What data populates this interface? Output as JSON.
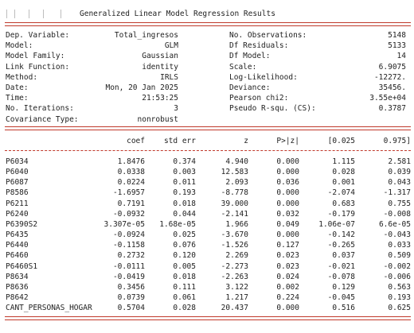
{
  "title": "Generalized Linear Model Regression Results",
  "summary_left": [
    {
      "label": "Dep. Variable:",
      "value": "Total_ingresos"
    },
    {
      "label": "Model:",
      "value": "GLM"
    },
    {
      "label": "Model Family:",
      "value": "Gaussian"
    },
    {
      "label": "Link Function:",
      "value": "identity"
    },
    {
      "label": "Method:",
      "value": "IRLS"
    },
    {
      "label": "Date:",
      "value": "Mon, 20 Jan 2025"
    },
    {
      "label": "Time:",
      "value": "21:53:25"
    },
    {
      "label": "No. Iterations:",
      "value": "3"
    },
    {
      "label": "Covariance Type:",
      "value": "nonrobust"
    }
  ],
  "summary_right": [
    {
      "label": "No. Observations:",
      "value": "5148"
    },
    {
      "label": "Df Residuals:",
      "value": "5133"
    },
    {
      "label": "Df Model:",
      "value": "14"
    },
    {
      "label": "Scale:",
      "value": "6.9075"
    },
    {
      "label": "Log-Likelihood:",
      "value": "-12272."
    },
    {
      "label": "Deviance:",
      "value": "35456."
    },
    {
      "label": "Pearson chi2:",
      "value": "3.55e+04"
    },
    {
      "label": "Pseudo R-squ. (CS):",
      "value": "0.3787"
    }
  ],
  "coef_headers": [
    "coef",
    "std err",
    "z",
    "P>|z|",
    "[0.025",
    "0.975]"
  ],
  "coef_rows": [
    {
      "name": "P6034",
      "coef": "1.8476",
      "se": "0.374",
      "z": "4.940",
      "p": "0.000",
      "lo": "1.115",
      "hi": "2.581"
    },
    {
      "name": "P6040",
      "coef": "0.0338",
      "se": "0.003",
      "z": "12.583",
      "p": "0.000",
      "lo": "0.028",
      "hi": "0.039"
    },
    {
      "name": "P6087",
      "coef": "0.0224",
      "se": "0.011",
      "z": "2.093",
      "p": "0.036",
      "lo": "0.001",
      "hi": "0.043"
    },
    {
      "name": "P8586",
      "coef": "-1.6957",
      "se": "0.193",
      "z": "-8.778",
      "p": "0.000",
      "lo": "-2.074",
      "hi": "-1.317"
    },
    {
      "name": "P6211",
      "coef": "0.7191",
      "se": "0.018",
      "z": "39.000",
      "p": "0.000",
      "lo": "0.683",
      "hi": "0.755"
    },
    {
      "name": "P6240",
      "coef": "-0.0932",
      "se": "0.044",
      "z": "-2.141",
      "p": "0.032",
      "lo": "-0.179",
      "hi": "-0.008"
    },
    {
      "name": "P6390S2",
      "coef": "3.307e-05",
      "se": "1.68e-05",
      "z": "1.966",
      "p": "0.049",
      "lo": "1.06e-07",
      "hi": "6.6e-05"
    },
    {
      "name": "P6435",
      "coef": "-0.0924",
      "se": "0.025",
      "z": "-3.670",
      "p": "0.000",
      "lo": "-0.142",
      "hi": "-0.043"
    },
    {
      "name": "P6440",
      "coef": "-0.1158",
      "se": "0.076",
      "z": "-1.526",
      "p": "0.127",
      "lo": "-0.265",
      "hi": "0.033"
    },
    {
      "name": "P6460",
      "coef": "0.2732",
      "se": "0.120",
      "z": "2.269",
      "p": "0.023",
      "lo": "0.037",
      "hi": "0.509"
    },
    {
      "name": "P6460S1",
      "coef": "-0.0111",
      "se": "0.005",
      "z": "-2.273",
      "p": "0.023",
      "lo": "-0.021",
      "hi": "-0.002"
    },
    {
      "name": "P8634",
      "coef": "-0.0419",
      "se": "0.018",
      "z": "-2.263",
      "p": "0.024",
      "lo": "-0.078",
      "hi": "-0.006"
    },
    {
      "name": "P8636",
      "coef": "0.3456",
      "se": "0.111",
      "z": "3.122",
      "p": "0.002",
      "lo": "0.129",
      "hi": "0.563"
    },
    {
      "name": "P8642",
      "coef": "0.0739",
      "se": "0.061",
      "z": "1.217",
      "p": "0.224",
      "lo": "-0.045",
      "hi": "0.193"
    },
    {
      "name": "CANT_PERSONAS_HOGAR",
      "coef": "0.5704",
      "se": "0.028",
      "z": "20.437",
      "p": "0.000",
      "lo": "0.516",
      "hi": "0.625"
    }
  ],
  "colors": {
    "rule": "#c0392b",
    "text": "#222222"
  }
}
